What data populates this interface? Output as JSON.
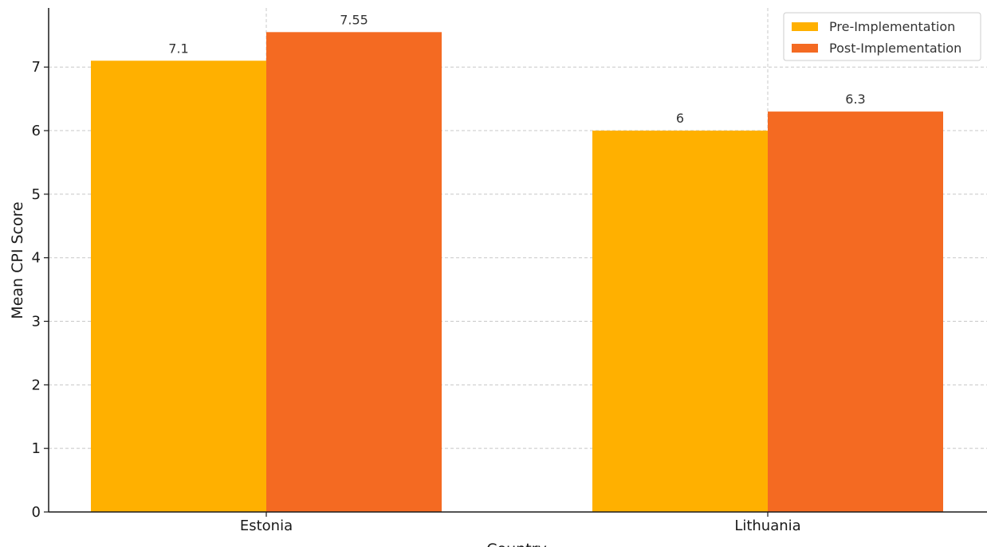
{
  "chart_data": {
    "type": "bar",
    "categories": [
      "Estonia",
      "Lithuania"
    ],
    "series": [
      {
        "name": "Pre-Implementation",
        "values": [
          7.1,
          6
        ],
        "labels": [
          "7.1",
          "6"
        ],
        "color": "#FFB000"
      },
      {
        "name": "Post-Implementation",
        "values": [
          7.55,
          6.3
        ],
        "labels": [
          "7.55",
          "6.3"
        ],
        "color": "#F46A22"
      }
    ],
    "xlabel": "Country",
    "ylabel": "Mean CPI Score",
    "ylim": [
      0,
      7.93
    ],
    "yticks": [
      "0",
      "1",
      "2",
      "3",
      "4",
      "5",
      "6",
      "7"
    ],
    "grid": true,
    "legend_position": "top-right"
  }
}
